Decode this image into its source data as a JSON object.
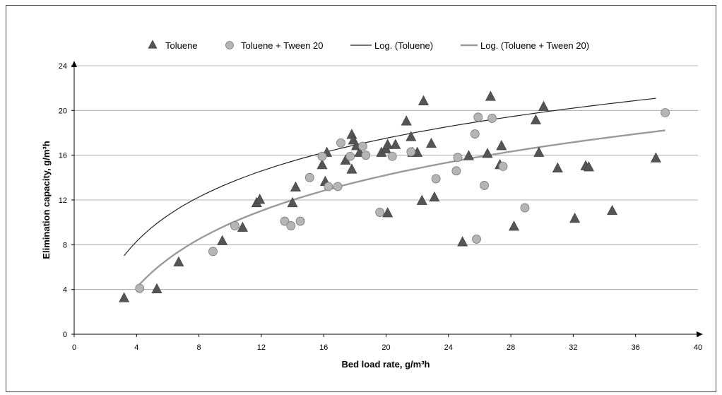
{
  "chart_data": {
    "type": "scatter",
    "xlabel": "Bed load rate, g/m³h",
    "ylabel": "Elimination capacity, g/m³h",
    "xlim": [
      0,
      40
    ],
    "ylim": [
      0,
      24
    ],
    "xticks": [
      "0",
      "4",
      "8",
      "12",
      "16",
      "20",
      "24",
      "28",
      "32",
      "36",
      "40"
    ],
    "yticks": [
      "0",
      "4",
      "8",
      "12",
      "16",
      "20",
      "24"
    ],
    "grid": "horizontal",
    "legend_position": "top",
    "legend": [
      {
        "label": "Toluene",
        "marker": "triangle",
        "color": "#555555"
      },
      {
        "label": "Toluene + Tween 20",
        "marker": "circle",
        "color": "#b5b5b5"
      },
      {
        "label": "Log. (Toluene)",
        "marker": "line",
        "color": "#222222"
      },
      {
        "label": "Log. (Toluene + Tween 20)",
        "marker": "line",
        "color": "#9a9a9a"
      }
    ],
    "series": [
      {
        "name": "Toluene",
        "marker": "triangle",
        "color": "#555555",
        "points": [
          [
            3.2,
            3.2
          ],
          [
            5.3,
            4.0
          ],
          [
            6.7,
            6.4
          ],
          [
            9.5,
            8.3
          ],
          [
            10.8,
            9.5
          ],
          [
            11.7,
            11.7
          ],
          [
            11.9,
            12.0
          ],
          [
            14.0,
            11.7
          ],
          [
            14.2,
            13.1
          ],
          [
            15.9,
            15.1
          ],
          [
            16.1,
            13.6
          ],
          [
            16.2,
            16.2
          ],
          [
            17.4,
            15.5
          ],
          [
            17.8,
            14.7
          ],
          [
            17.8,
            17.8
          ],
          [
            17.9,
            17.3
          ],
          [
            18.1,
            16.8
          ],
          [
            18.3,
            16.2
          ],
          [
            19.7,
            16.2
          ],
          [
            20.0,
            16.5
          ],
          [
            20.1,
            16.9
          ],
          [
            20.1,
            10.8
          ],
          [
            20.6,
            16.9
          ],
          [
            21.3,
            19.0
          ],
          [
            21.6,
            17.6
          ],
          [
            21.7,
            16.2
          ],
          [
            22.0,
            16.2
          ],
          [
            22.3,
            11.9
          ],
          [
            22.4,
            20.8
          ],
          [
            22.9,
            17.0
          ],
          [
            23.1,
            12.2
          ],
          [
            24.9,
            8.2
          ],
          [
            25.3,
            15.9
          ],
          [
            26.5,
            16.1
          ],
          [
            26.7,
            21.2
          ],
          [
            27.3,
            15.1
          ],
          [
            27.4,
            16.8
          ],
          [
            28.2,
            9.6
          ],
          [
            29.6,
            19.1
          ],
          [
            29.8,
            16.2
          ],
          [
            30.1,
            20.3
          ],
          [
            31.0,
            14.8
          ],
          [
            32.1,
            10.3
          ],
          [
            32.8,
            15.0
          ],
          [
            33.0,
            14.9
          ],
          [
            34.5,
            11.0
          ],
          [
            37.3,
            15.7
          ]
        ]
      },
      {
        "name": "Toluene + Tween 20",
        "marker": "circle",
        "color": "#b5b5b5",
        "points": [
          [
            4.2,
            4.1
          ],
          [
            8.9,
            7.4
          ],
          [
            10.3,
            9.7
          ],
          [
            13.5,
            10.1
          ],
          [
            13.9,
            9.7
          ],
          [
            14.5,
            10.1
          ],
          [
            15.1,
            14.0
          ],
          [
            15.9,
            15.9
          ],
          [
            16.3,
            13.2
          ],
          [
            16.9,
            13.2
          ],
          [
            17.1,
            17.1
          ],
          [
            17.7,
            15.9
          ],
          [
            18.5,
            16.8
          ],
          [
            18.7,
            16.0
          ],
          [
            19.6,
            10.9
          ],
          [
            20.4,
            15.9
          ],
          [
            21.6,
            16.3
          ],
          [
            23.2,
            13.9
          ],
          [
            24.5,
            14.6
          ],
          [
            24.6,
            15.8
          ],
          [
            25.7,
            17.9
          ],
          [
            25.8,
            8.5
          ],
          [
            25.9,
            19.4
          ],
          [
            26.3,
            13.3
          ],
          [
            26.8,
            19.3
          ],
          [
            27.5,
            15.0
          ],
          [
            28.9,
            11.3
          ],
          [
            37.9,
            19.8
          ]
        ]
      }
    ],
    "trendlines": [
      {
        "name": "Log. (Toluene)",
        "type": "log",
        "a": 5.73,
        "b": 0.35,
        "x_range": [
          3.2,
          37.3
        ],
        "color": "#222222",
        "width": 1.2
      },
      {
        "name": "Log. (Toluene + Tween 20)",
        "type": "log",
        "a": 6.25,
        "b": -4.5,
        "x_range": [
          4.2,
          37.9
        ],
        "color": "#9a9a9a",
        "width": 2.4
      }
    ]
  }
}
